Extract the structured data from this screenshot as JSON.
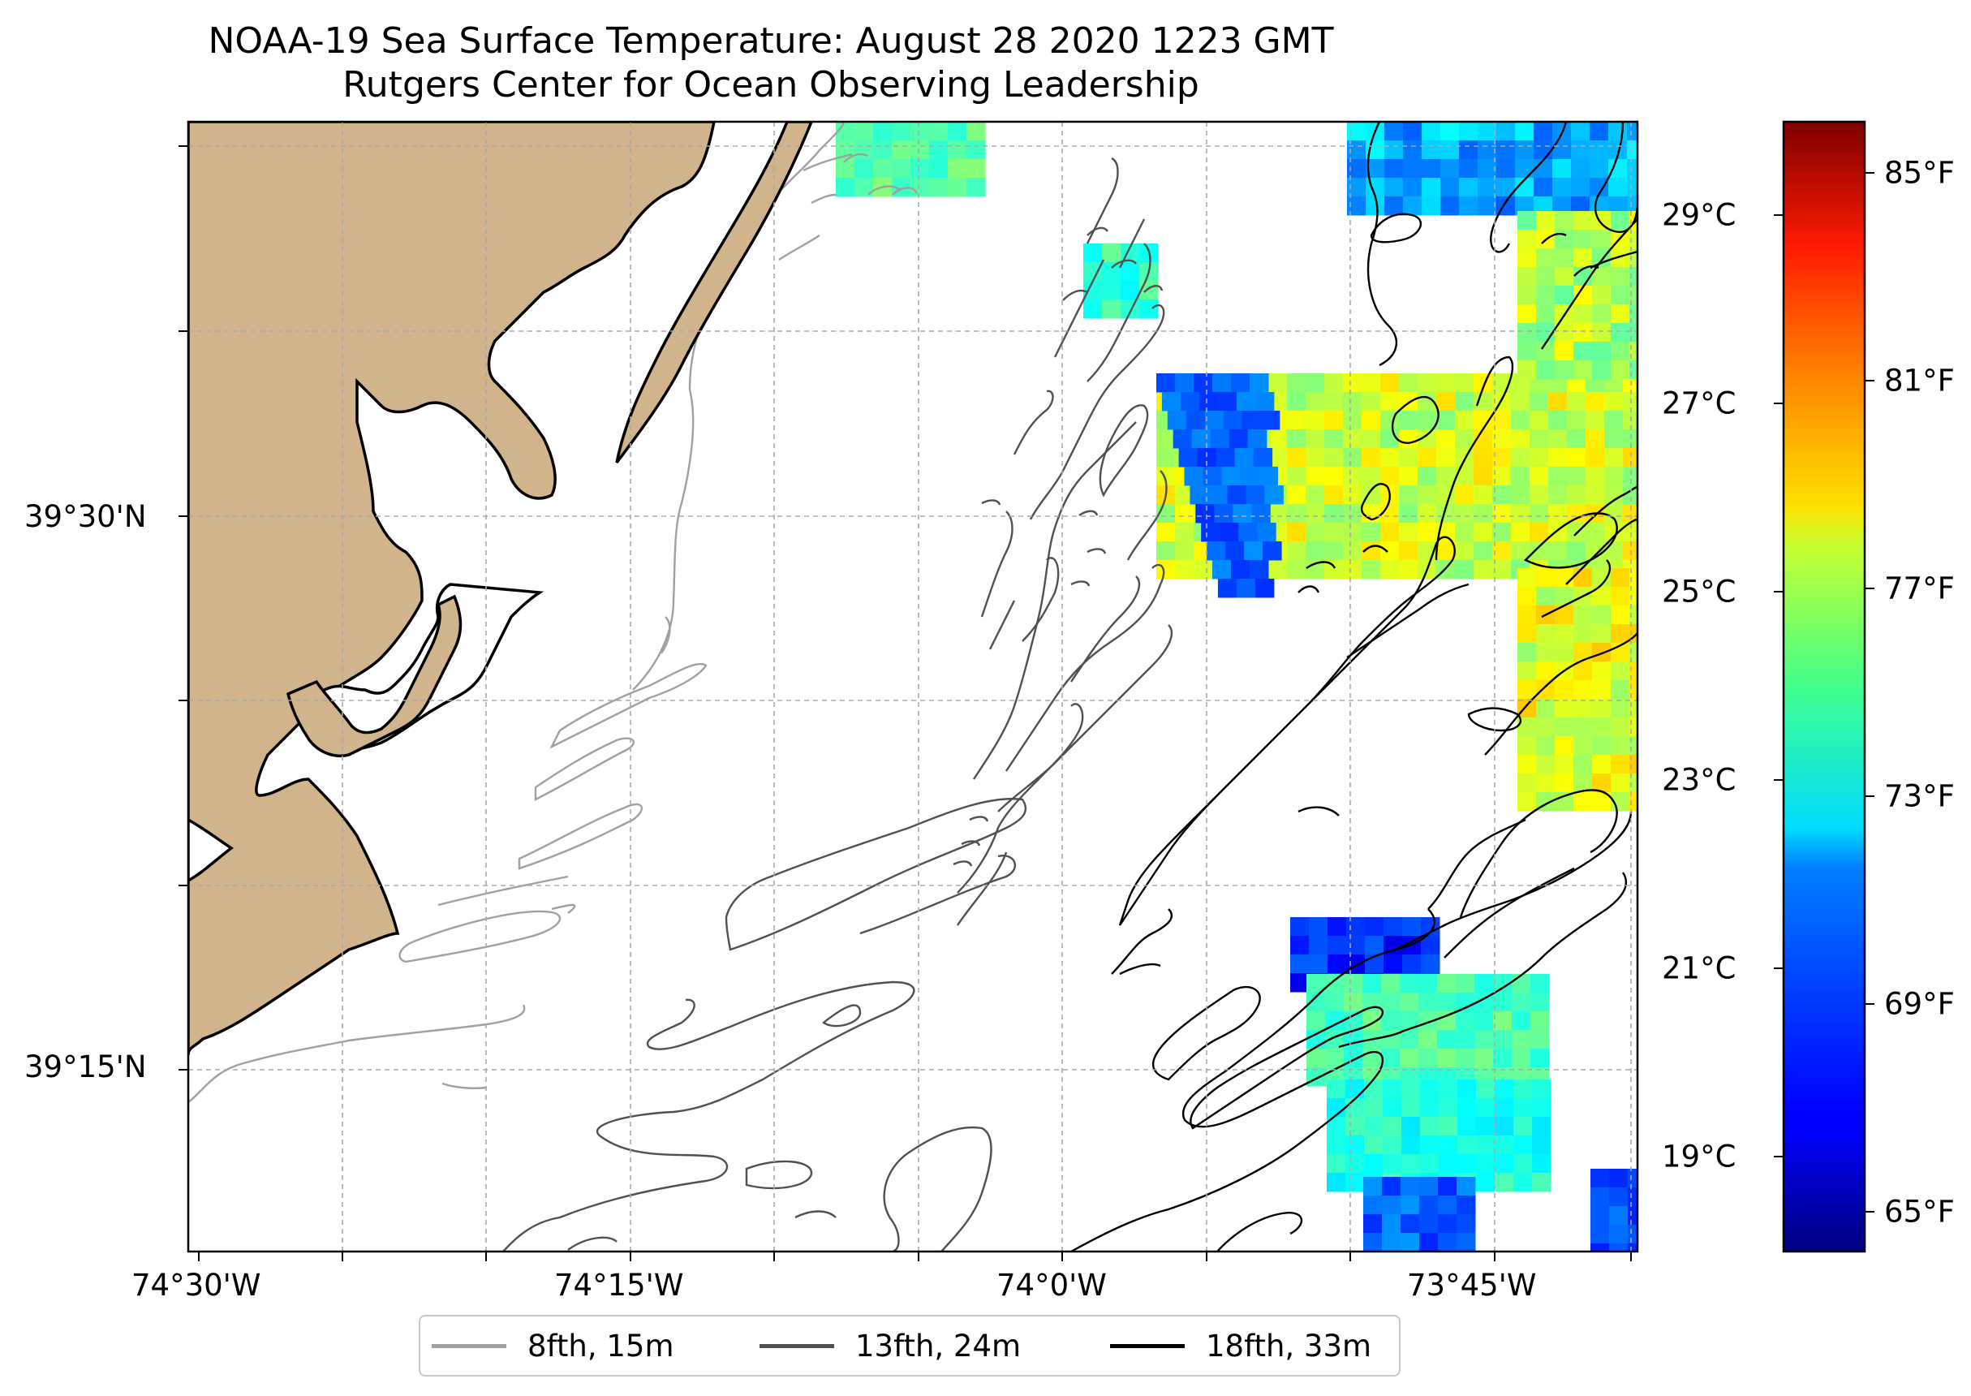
{
  "title": "NOAA-19 Sea Surface Temperature: August 28 2020 1223 GMT",
  "subtitle": "Rutgers Center for Ocean Observing Leadership",
  "map": {
    "land_color": "#d2b48c",
    "ocean_color": "#ffffff",
    "grid_color": "#aaaaaa",
    "lon_ticks": [
      "74°30'W",
      "74°15'W",
      "74°0'W",
      "73°45'W"
    ],
    "lat_ticks": [
      "39°30'N",
      "39°15'N"
    ]
  },
  "colorbar": {
    "colormap": "jet",
    "celsius_ticks": [
      "29°C",
      "27°C",
      "25°C",
      "23°C",
      "21°C",
      "19°C"
    ],
    "fahrenheit_ticks": [
      "85°F",
      "81°F",
      "77°F",
      "73°F",
      "69°F",
      "65°F"
    ],
    "range_f": [
      64,
      86
    ]
  },
  "legend": {
    "items": [
      {
        "label": "8fth, 15m",
        "color": "#a0a0a0"
      },
      {
        "label": "13fth, 24m",
        "color": "#505050"
      },
      {
        "label": "18fth, 33m",
        "color": "#000000"
      }
    ]
  }
}
